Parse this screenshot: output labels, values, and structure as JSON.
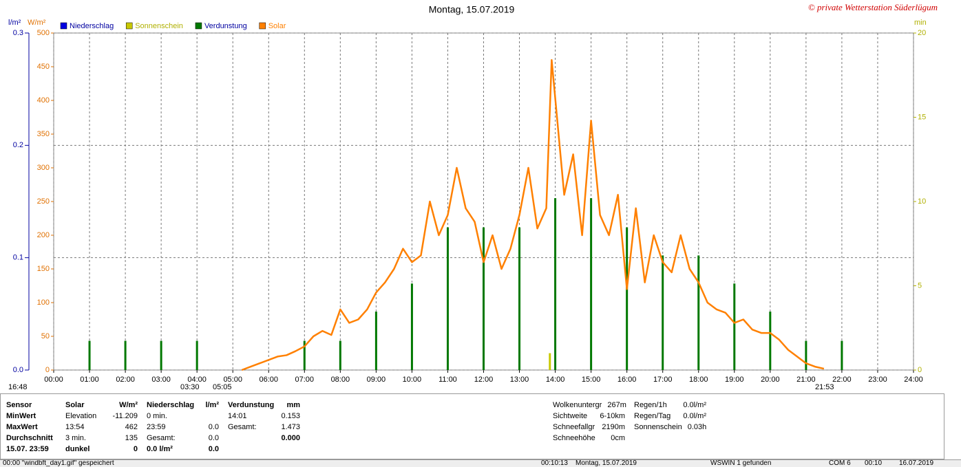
{
  "chart_data": {
    "type": "line",
    "title": "Montag, 15.07.2019",
    "credit": "© private Wetterstation Süderlügum",
    "ylabel": "l/m²",
    "y2label": "W/m²",
    "y3label": "min",
    "xlim": [
      0,
      24
    ],
    "xticks": [
      {
        "value": 0,
        "label": "00:00"
      },
      {
        "value": 1,
        "label": "01:00"
      },
      {
        "value": 2,
        "label": "02:00"
      },
      {
        "value": 3,
        "label": "03:00"
      },
      {
        "value": 4,
        "label": "04:00"
      },
      {
        "value": 5,
        "label": "05:00"
      },
      {
        "value": 6,
        "label": "06:00"
      },
      {
        "value": 7,
        "label": "07:00"
      },
      {
        "value": 8,
        "label": "08:00"
      },
      {
        "value": 9,
        "label": "09:00"
      },
      {
        "value": 10,
        "label": "10:00"
      },
      {
        "value": 11,
        "label": "11:00"
      },
      {
        "value": 12,
        "label": "12:00"
      },
      {
        "value": 13,
        "label": "13:00"
      },
      {
        "value": 14,
        "label": "14:00"
      },
      {
        "value": 15,
        "label": "15:00"
      },
      {
        "value": 16,
        "label": "16:00"
      },
      {
        "value": 17,
        "label": "17:00"
      },
      {
        "value": 18,
        "label": "18:00"
      },
      {
        "value": 19,
        "label": "19:00"
      },
      {
        "value": 20,
        "label": "20:00"
      },
      {
        "value": 21,
        "label": "21:00"
      },
      {
        "value": 22,
        "label": "22:00"
      },
      {
        "value": 23,
        "label": "23:00"
      },
      {
        "value": 24,
        "label": "24:00"
      }
    ],
    "ylim": [
      0,
      0.3
    ],
    "yticks": [
      {
        "value": 0,
        "label": "0.0"
      },
      0.1,
      0.2,
      0.3
    ],
    "y2lim": [
      0,
      500
    ],
    "y2ticks": [
      0,
      50,
      100,
      150,
      200,
      250,
      300,
      350,
      400,
      450,
      500
    ],
    "y3lim": [
      0,
      20
    ],
    "y3ticks": [
      0,
      5,
      10,
      15,
      20
    ],
    "grid": true,
    "series": [
      {
        "name": "Niederschlag",
        "color": "#0000e0",
        "kind": "bar",
        "axis": "y",
        "x": [],
        "values": []
      },
      {
        "name": "Sonnenschein",
        "color": "#c8c800",
        "kind": "bar",
        "axis": "y3",
        "x": [
          13.85
        ],
        "values": [
          1
        ]
      },
      {
        "name": "Verdunstung",
        "color": "#007800",
        "kind": "bar",
        "axis": "y",
        "x": [
          1,
          2,
          3,
          4,
          7,
          8,
          9,
          10,
          11,
          12,
          13,
          14,
          15,
          16,
          17,
          18,
          19,
          20,
          21,
          22
        ],
        "values": [
          0.026,
          0.026,
          0.026,
          0.026,
          0.026,
          0.026,
          0.052,
          0.077,
          0.127,
          0.127,
          0.127,
          0.153,
          0.153,
          0.127,
          0.102,
          0.102,
          0.077,
          0.052,
          0.026,
          0.026
        ]
      },
      {
        "name": "Solar",
        "color": "#ff8000",
        "kind": "line",
        "axis": "y2",
        "x": [
          5.25,
          5.5,
          5.75,
          6,
          6.25,
          6.5,
          6.75,
          7,
          7.25,
          7.5,
          7.75,
          8,
          8.25,
          8.5,
          8.75,
          9,
          9.25,
          9.5,
          9.75,
          10,
          10.25,
          10.5,
          10.75,
          11,
          11.25,
          11.5,
          11.75,
          12,
          12.25,
          12.5,
          12.75,
          13,
          13.25,
          13.5,
          13.75,
          13.9,
          14.25,
          14.5,
          14.75,
          15,
          15.25,
          15.5,
          15.75,
          16,
          16.25,
          16.5,
          16.75,
          17,
          17.25,
          17.5,
          17.75,
          18,
          18.25,
          18.5,
          18.75,
          19,
          19.25,
          19.5,
          19.75,
          20,
          20.25,
          20.5,
          20.75,
          21,
          21.25,
          21.5
        ],
        "values": [
          0,
          5,
          10,
          15,
          20,
          22,
          28,
          35,
          50,
          58,
          52,
          90,
          70,
          75,
          90,
          115,
          130,
          150,
          180,
          160,
          170,
          250,
          200,
          230,
          300,
          240,
          220,
          160,
          200,
          150,
          180,
          230,
          300,
          210,
          240,
          460,
          260,
          320,
          200,
          370,
          230,
          200,
          260,
          120,
          240,
          130,
          200,
          160,
          145,
          200,
          150,
          130,
          100,
          90,
          85,
          70,
          75,
          60,
          55,
          55,
          45,
          30,
          20,
          10,
          5,
          2
        ]
      }
    ],
    "annotations": [
      "16:48",
      "03:30",
      "05:05",
      "21:53"
    ]
  },
  "stats": {
    "columns": [
      [
        [
          "Sensor"
        ],
        [
          "MinWert"
        ],
        [
          "MaxWert"
        ],
        [
          "Durchschnitt"
        ],
        [
          "15.07. 23:59"
        ]
      ],
      [
        [
          "Solar",
          "W/m²"
        ],
        [
          "Elevation",
          "-11.209"
        ],
        [
          "13:54",
          "462"
        ],
        [
          "3 min.",
          "135"
        ],
        [
          "dunkel",
          "0"
        ]
      ],
      [
        [
          "Niederschlag",
          "l/m²"
        ],
        [
          "0 min."
        ],
        [
          "23:59",
          "0.0"
        ],
        [
          "Gesamt:",
          "0.0"
        ],
        [
          "0.0 l/m²",
          "0.0"
        ]
      ],
      [
        [
          "Verdunstung",
          "mm"
        ],
        [
          "14:01",
          "0.153"
        ],
        [
          "Gesamt:",
          "1.473"
        ],
        [
          "0.000"
        ]
      ],
      [
        [
          "Wolkenuntergr",
          "267m"
        ],
        [
          "Sichtweite",
          "6-10km"
        ],
        [
          "Schneefallgr",
          "2190m"
        ],
        [
          "Schneehöhe",
          "0cm"
        ]
      ],
      [
        [
          "Regen/1h",
          "0.0l/m²"
        ],
        [
          "Regen/Tag",
          "0.0l/m²"
        ],
        [
          "Sonnenschein",
          "0.03h"
        ]
      ]
    ]
  },
  "status": [
    "00:00 \"windbft_day1.gif\" gespeichert",
    "00:10:13",
    "Montag, 15.07.2019",
    "WSWIN 1 gefunden",
    "COM 6",
    "00:10",
    "16.07.2019"
  ]
}
